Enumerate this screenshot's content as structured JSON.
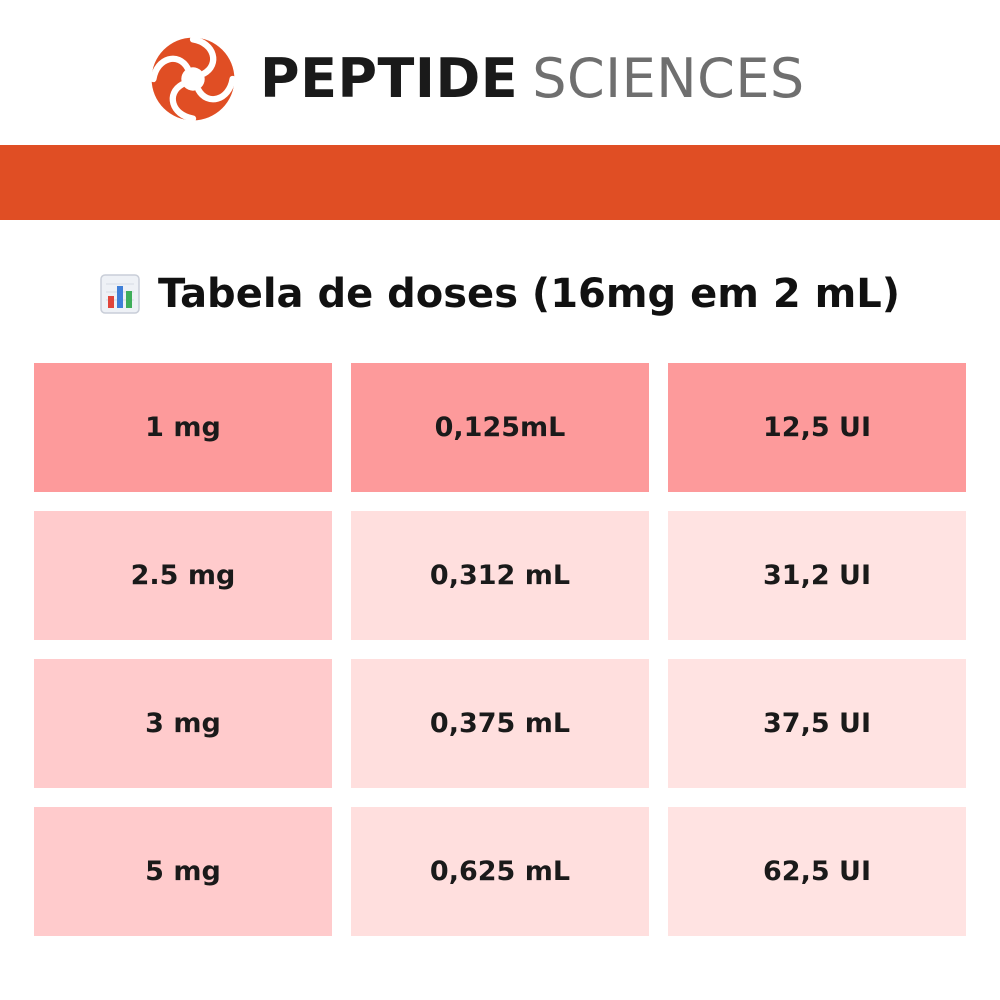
{
  "brand": {
    "primary": "PEPTIDE",
    "secondary": "SCIENCES",
    "logo_icon": "swirl-logo",
    "colors": {
      "accent": "#e04e24",
      "text_dark": "#1a1a1a",
      "text_grey": "#6f6f6f"
    }
  },
  "title": {
    "icon": "bar-chart-icon",
    "text": "Tabela de doses (16mg em 2 mL)"
  },
  "table": {
    "colors": {
      "header_row": "#fd9a9b",
      "col1": "#ffcbcc",
      "col2": "#ffdfde",
      "col3": "#ffe3e2"
    },
    "rows": [
      [
        "1 mg",
        "0,125mL",
        "12,5 UI"
      ],
      [
        "2.5 mg",
        "0,312 mL",
        "31,2 UI"
      ],
      [
        "3 mg",
        "0,375 mL",
        "37,5 UI"
      ],
      [
        "5 mg",
        "0,625 mL",
        "62,5 UI"
      ]
    ]
  }
}
